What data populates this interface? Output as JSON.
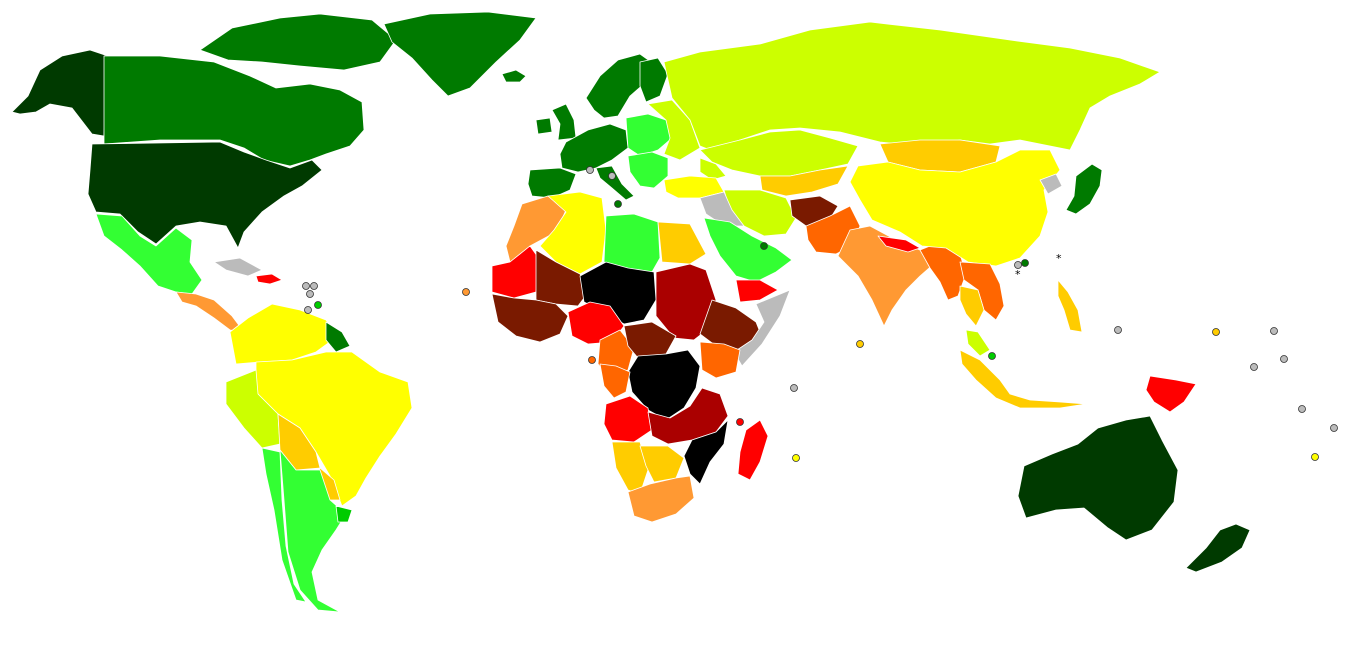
{
  "palette": {
    "very_high_1": "#003a00",
    "very_high_2": "#007a00",
    "high_1": "#00cc00",
    "high_2": "#33ff33",
    "medium_high": "#ccff00",
    "medium": "#ffff00",
    "medium_low": "#ffcc00",
    "low_1": "#ff9933",
    "low_2": "#ff6600",
    "very_low_1": "#ff0000",
    "very_low_2": "#aa0000",
    "very_low_3": "#7a1a00",
    "lowest": "#000000",
    "no_data": "#bbbbbb",
    "background": "#ffffff",
    "border": "#ffffff"
  },
  "regions": [
    {
      "name": "alaska",
      "fill": "very_high_1"
    },
    {
      "name": "canada",
      "fill": "very_high_2"
    },
    {
      "name": "canadian-arctic-islands",
      "fill": "very_high_2"
    },
    {
      "name": "greenland",
      "fill": "very_high_2"
    },
    {
      "name": "iceland",
      "fill": "very_high_2"
    },
    {
      "name": "united-states",
      "fill": "very_high_1"
    },
    {
      "name": "mexico",
      "fill": "high_2"
    },
    {
      "name": "cuba",
      "fill": "no_data"
    },
    {
      "name": "hispaniola",
      "fill": "very_low_1"
    },
    {
      "name": "central-america",
      "fill": "low_1"
    },
    {
      "name": "colombia-venezuela",
      "fill": "medium"
    },
    {
      "name": "brazil",
      "fill": "medium"
    },
    {
      "name": "peru",
      "fill": "medium_high"
    },
    {
      "name": "bolivia",
      "fill": "medium_low"
    },
    {
      "name": "paraguay",
      "fill": "medium_low"
    },
    {
      "name": "chile",
      "fill": "high_2"
    },
    {
      "name": "argentina",
      "fill": "high_2"
    },
    {
      "name": "uruguay",
      "fill": "high_1"
    },
    {
      "name": "guianas",
      "fill": "very_high_2"
    },
    {
      "name": "scandinavia",
      "fill": "very_high_2"
    },
    {
      "name": "finland",
      "fill": "very_high_2"
    },
    {
      "name": "united-kingdom",
      "fill": "very_high_2"
    },
    {
      "name": "ireland",
      "fill": "very_high_2"
    },
    {
      "name": "western-europe",
      "fill": "very_high_2"
    },
    {
      "name": "iberia",
      "fill": "very_high_2"
    },
    {
      "name": "italy",
      "fill": "very_high_2"
    },
    {
      "name": "eastern-europe",
      "fill": "high_2"
    },
    {
      "name": "balkans",
      "fill": "high_2"
    },
    {
      "name": "belarus-ukraine",
      "fill": "medium_high"
    },
    {
      "name": "russia",
      "fill": "medium_high"
    },
    {
      "name": "kazakhstan",
      "fill": "medium_high"
    },
    {
      "name": "central-asia",
      "fill": "medium_low"
    },
    {
      "name": "turkey",
      "fill": "medium"
    },
    {
      "name": "caucasus",
      "fill": "medium_high"
    },
    {
      "name": "iran",
      "fill": "medium_high"
    },
    {
      "name": "iraq-syria",
      "fill": "no_data"
    },
    {
      "name": "arabia",
      "fill": "high_2"
    },
    {
      "name": "yemen",
      "fill": "very_low_1"
    },
    {
      "name": "afghanistan",
      "fill": "very_low_3"
    },
    {
      "name": "pakistan",
      "fill": "low_2"
    },
    {
      "name": "india",
      "fill": "low_1"
    },
    {
      "name": "nepal",
      "fill": "very_low_1"
    },
    {
      "name": "bangladesh-myanmar",
      "fill": "low_2"
    },
    {
      "name": "mongolia",
      "fill": "medium_low"
    },
    {
      "name": "china",
      "fill": "medium"
    },
    {
      "name": "north-korea",
      "fill": "no_data"
    },
    {
      "name": "japan",
      "fill": "very_high_2"
    },
    {
      "name": "indochina",
      "fill": "low_2"
    },
    {
      "name": "thailand",
      "fill": "medium_low"
    },
    {
      "name": "malaysia",
      "fill": "medium_high"
    },
    {
      "name": "indonesia",
      "fill": "medium_low"
    },
    {
      "name": "philippines",
      "fill": "medium_low"
    },
    {
      "name": "papua-new-guinea",
      "fill": "very_low_1"
    },
    {
      "name": "australia",
      "fill": "very_high_1"
    },
    {
      "name": "new-zealand",
      "fill": "very_high_1"
    },
    {
      "name": "morocco-western-sahara",
      "fill": "low_1"
    },
    {
      "name": "algeria",
      "fill": "medium"
    },
    {
      "name": "libya",
      "fill": "high_2"
    },
    {
      "name": "egypt",
      "fill": "medium_low"
    },
    {
      "name": "mauritania",
      "fill": "very_low_1"
    },
    {
      "name": "mali",
      "fill": "very_low_3"
    },
    {
      "name": "niger-chad",
      "fill": "lowest"
    },
    {
      "name": "sudan",
      "fill": "very_low_2"
    },
    {
      "name": "west-africa",
      "fill": "very_low_3"
    },
    {
      "name": "nigeria",
      "fill": "very_low_1"
    },
    {
      "name": "cameroon",
      "fill": "low_2"
    },
    {
      "name": "central-african-republic",
      "fill": "very_low_3"
    },
    {
      "name": "ethiopia",
      "fill": "very_low_3"
    },
    {
      "name": "somalia",
      "fill": "no_data"
    },
    {
      "name": "kenya",
      "fill": "low_2"
    },
    {
      "name": "dr-congo",
      "fill": "lowest"
    },
    {
      "name": "gabon-congo",
      "fill": "low_2"
    },
    {
      "name": "angola",
      "fill": "very_low_1"
    },
    {
      "name": "zambia-tanzania",
      "fill": "very_low_2"
    },
    {
      "name": "mozambique",
      "fill": "lowest"
    },
    {
      "name": "namibia",
      "fill": "medium_low"
    },
    {
      "name": "botswana",
      "fill": "medium_low"
    },
    {
      "name": "south-africa",
      "fill": "low_1"
    },
    {
      "name": "madagascar",
      "fill": "very_low_1"
    }
  ],
  "small_markers": [
    {
      "name": "caribbean-island-marker-1",
      "fill": "no_data"
    },
    {
      "name": "caribbean-island-marker-2",
      "fill": "no_data"
    },
    {
      "name": "caribbean-island-marker-3",
      "fill": "no_data"
    },
    {
      "name": "caribbean-island-marker-4",
      "fill": "no_data"
    },
    {
      "name": "caribbean-island-marker-5",
      "fill": "high_1"
    },
    {
      "name": "cape-verde-marker",
      "fill": "low_1"
    },
    {
      "name": "sao-tome-marker",
      "fill": "low_2"
    },
    {
      "name": "malta-marker",
      "fill": "no_data"
    },
    {
      "name": "mediterranean-marker",
      "fill": "no_data"
    },
    {
      "name": "cyprus-marker",
      "fill": "very_high_2"
    },
    {
      "name": "bahrain-marker",
      "fill": "very_high_2"
    },
    {
      "name": "seychelles-marker",
      "fill": "no_data"
    },
    {
      "name": "comoros-marker",
      "fill": "very_low_1"
    },
    {
      "name": "mauritius-marker",
      "fill": "medium"
    },
    {
      "name": "maldives-marker",
      "fill": "medium_low"
    },
    {
      "name": "singapore-marker",
      "fill": "high_1"
    },
    {
      "name": "hong-kong-marker",
      "fill": "no_data"
    },
    {
      "name": "macau-marker",
      "fill": "very_high_2"
    },
    {
      "name": "pacific-marker-1",
      "fill": "no_data"
    },
    {
      "name": "pacific-marker-2",
      "fill": "medium_low"
    },
    {
      "name": "pacific-marker-3",
      "fill": "no_data"
    },
    {
      "name": "pacific-marker-4",
      "fill": "no_data"
    },
    {
      "name": "pacific-marker-5",
      "fill": "no_data"
    },
    {
      "name": "pacific-marker-6",
      "fill": "no_data"
    },
    {
      "name": "pacific-marker-7",
      "fill": "no_data"
    },
    {
      "name": "pacific-marker-8",
      "fill": "medium"
    }
  ],
  "asterisks": [
    {
      "name": "taiwan-asterisk",
      "text": "*"
    },
    {
      "name": "hong-kong-asterisk",
      "text": "*"
    }
  ]
}
